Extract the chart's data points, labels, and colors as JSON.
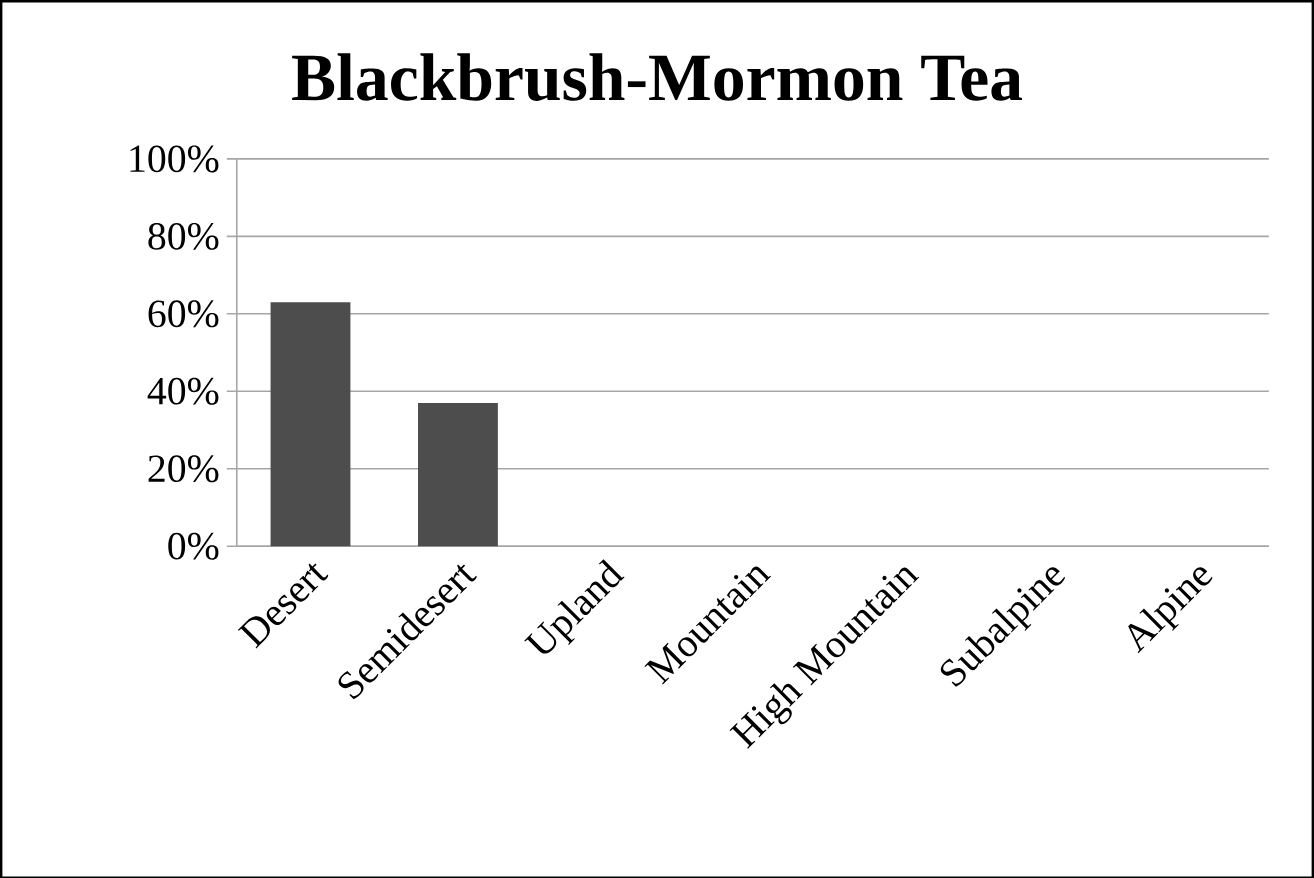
{
  "chart_data": {
    "type": "bar",
    "title": "Blackbrush-Mormon Tea",
    "categories": [
      "Desert",
      "Semidesert",
      "Upland",
      "Mountain",
      "High Mountain",
      "Subalpine",
      "Alpine"
    ],
    "values": [
      63,
      37,
      0,
      0,
      0,
      0,
      0
    ],
    "color": "#4d4d4d",
    "ylim": [
      0,
      100
    ],
    "yticks": [
      {
        "value": 0,
        "label": "0%"
      },
      {
        "value": 20,
        "label": "20%"
      },
      {
        "value": 40,
        "label": "40%"
      },
      {
        "value": 60,
        "label": "60%"
      },
      {
        "value": 80,
        "label": "80%"
      },
      {
        "value": 100,
        "label": "100%"
      }
    ],
    "grid": "y"
  }
}
